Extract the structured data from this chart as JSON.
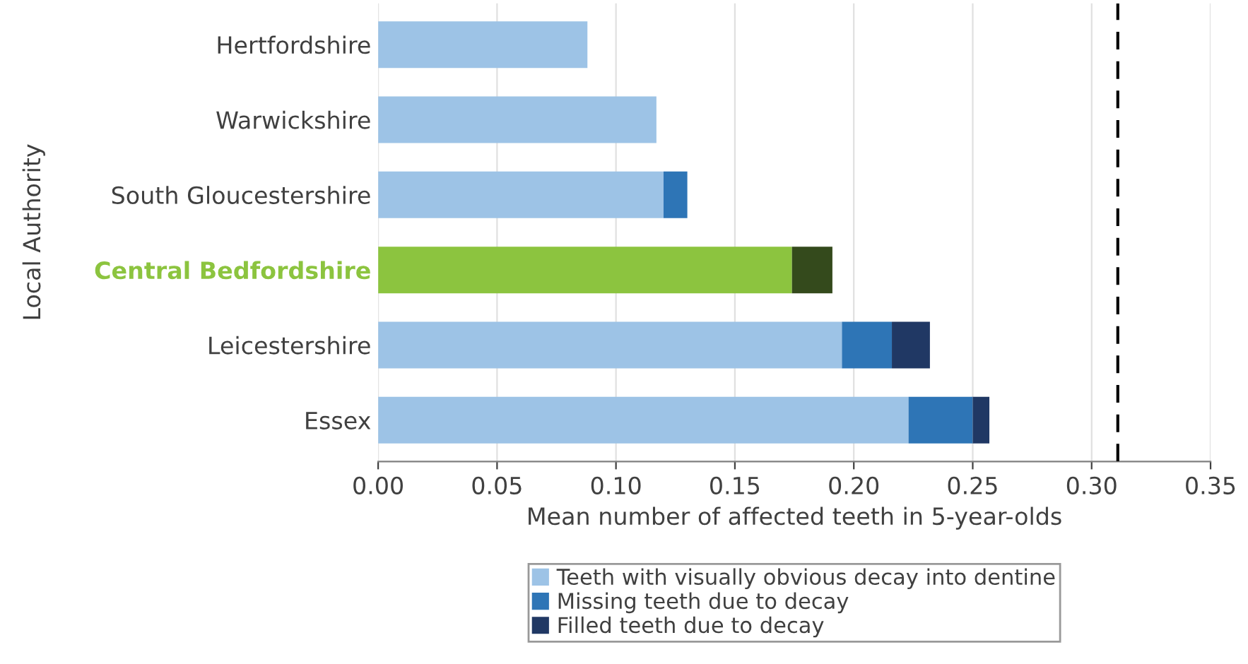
{
  "chart_data": {
    "type": "bar",
    "orientation": "horizontal",
    "stacked": true,
    "xlabel": "Mean number of affected teeth in 5-year-olds",
    "ylabel": "Local Authority",
    "categories": [
      "Hertfordshire",
      "Warwickshire",
      "South Gloucestershire",
      "Central Bedfordshire",
      "Leicestershire",
      "Essex"
    ],
    "series": [
      {
        "name": "Teeth with visually obvious decay into dentine",
        "color": "#9dc3e6",
        "colors": [
          "#9dc3e6",
          "#9dc3e6",
          "#9dc3e6",
          "#8cc43f",
          "#9dc3e6",
          "#9dc3e6"
        ],
        "values": [
          0.088,
          0.117,
          0.12,
          0.174,
          0.195,
          0.223
        ]
      },
      {
        "name": "Missing teeth due to decay",
        "color": "#2e75b6",
        "values": [
          null,
          null,
          0.01,
          null,
          0.021,
          0.027
        ]
      },
      {
        "name": "Filled teeth due to decay",
        "color": "#203864",
        "colors": [
          "#203864",
          "#203864",
          "#203864",
          "#344a1c",
          "#203864",
          "#203864"
        ],
        "values": [
          null,
          null,
          null,
          0.017,
          0.016,
          0.007
        ]
      }
    ],
    "xlim": [
      0,
      0.35
    ],
    "xticks": [
      {
        "value": 0,
        "label": "0.00"
      },
      {
        "value": 0.05,
        "label": "0.05"
      },
      {
        "value": 0.1,
        "label": "0.10"
      },
      {
        "value": 0.15,
        "label": "0.15"
      },
      {
        "value": 0.2,
        "label": "0.20"
      },
      {
        "value": 0.25,
        "label": "0.25"
      },
      {
        "value": 0.3,
        "label": "0.30"
      },
      {
        "value": 0.35,
        "label": "0.35"
      }
    ],
    "ref_lines": [
      {
        "axis": "x",
        "value": 0.311,
        "color": "#000000",
        "line_style": "dashed"
      }
    ],
    "grid": "x",
    "legend": "bottom"
  }
}
